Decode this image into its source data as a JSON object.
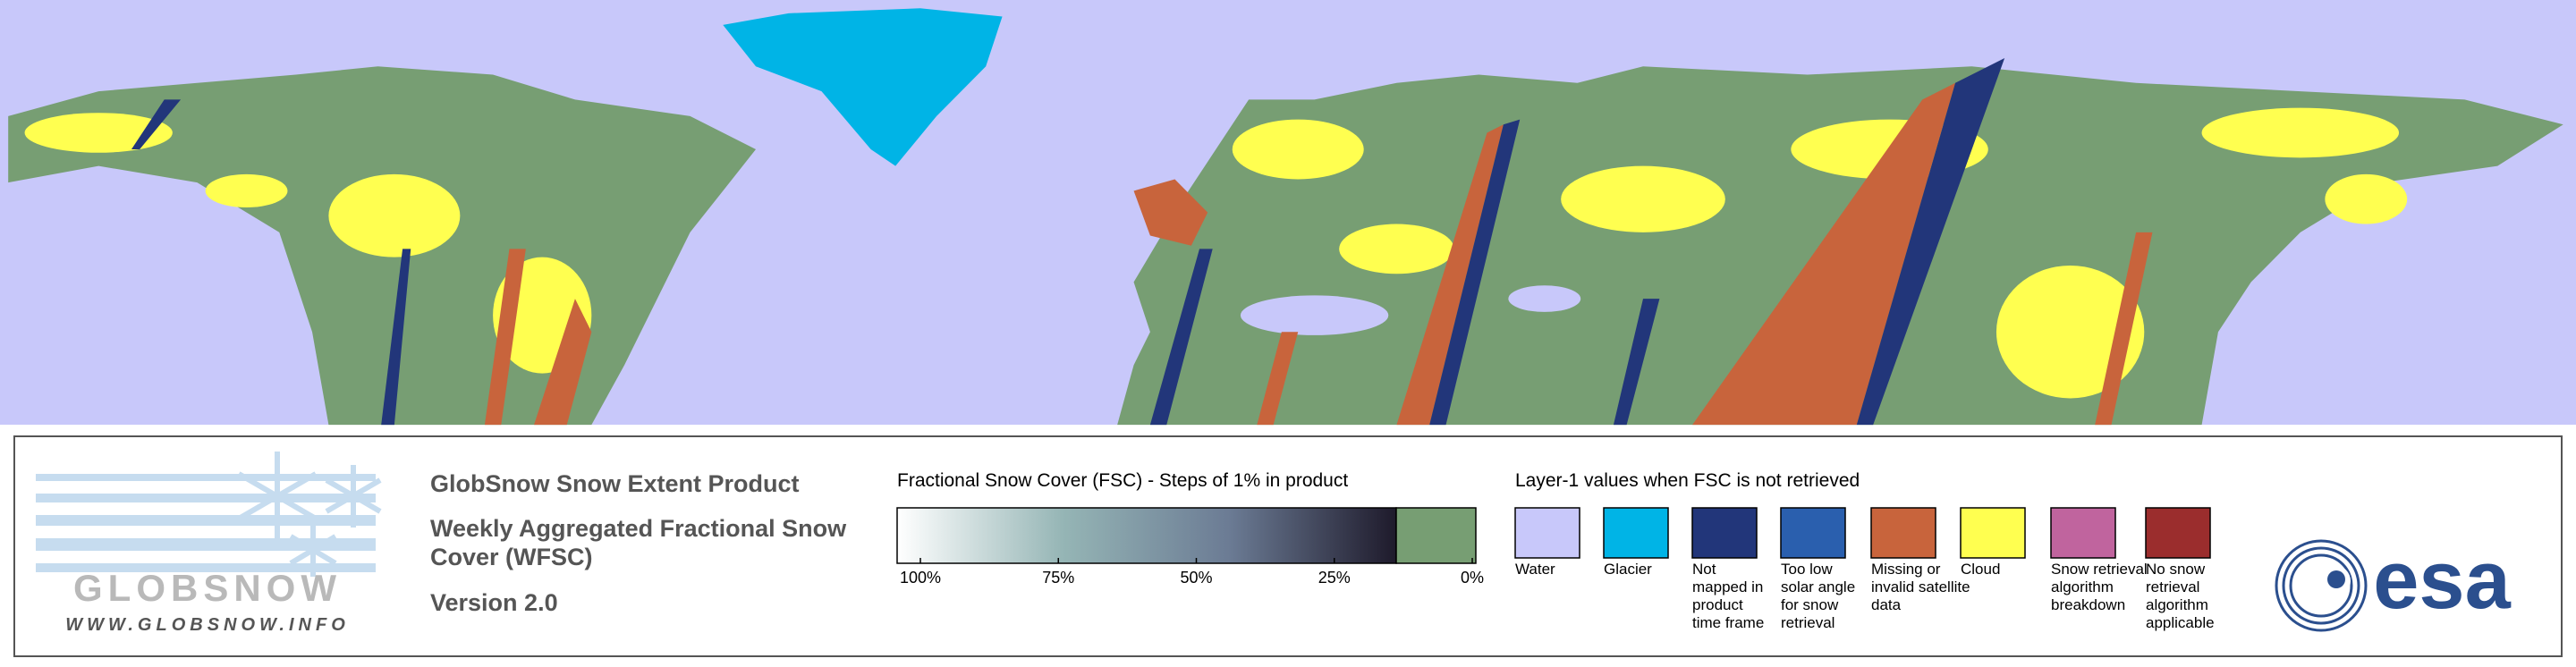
{
  "product": {
    "title": "GlobSnow Snow Extent Product",
    "subtitle_lines": [
      "Weekly Aggregated Fractional Snow",
      "Cover (WFSC)"
    ],
    "version": "Version 2.0"
  },
  "logo": {
    "name": "GLOBSNOW",
    "url": "WWW.GLOBSNOW.INFO"
  },
  "agency_logo": "esa",
  "fsc_scale": {
    "title": "Fractional Snow Cover (FSC) - Steps of 1% in product",
    "ticks": [
      {
        "value": 100,
        "label": "100%"
      },
      {
        "value": 75,
        "label": "75%"
      },
      {
        "value": 50,
        "label": "50%"
      },
      {
        "value": 25,
        "label": "25%"
      },
      {
        "value": 0,
        "label": "0%"
      }
    ],
    "colors": [
      "#ffffff",
      "#95b5b5",
      "#6b7b94",
      "#1e1a2b"
    ],
    "zero_color": "#779e73"
  },
  "layer1": {
    "title": "Layer-1 values when FSC is not retrieved",
    "items": [
      {
        "lines": [
          "Water"
        ],
        "color": "#c8c8fa"
      },
      {
        "lines": [
          "Glacier"
        ],
        "color": "#00b4e6"
      },
      {
        "lines": [
          "Not",
          "mapped in",
          "product",
          "time frame"
        ],
        "color": "#22367a"
      },
      {
        "lines": [
          "Too low",
          "solar angle",
          "for snow",
          "retrieval"
        ],
        "color": "#2a5fae"
      },
      {
        "lines": [
          "Missing or",
          "invalid satellite",
          "data"
        ],
        "color": "#c8643c"
      },
      {
        "lines": [
          "Cloud"
        ],
        "color": "#ffff50"
      },
      {
        "lines": [
          "Snow retrieval",
          "algorithm",
          "breakdown"
        ],
        "color": "#c0649e"
      },
      {
        "lines": [
          "No snow",
          "retrieval",
          "algorithm",
          "applicable"
        ],
        "color": "#9b2d2d"
      }
    ]
  }
}
